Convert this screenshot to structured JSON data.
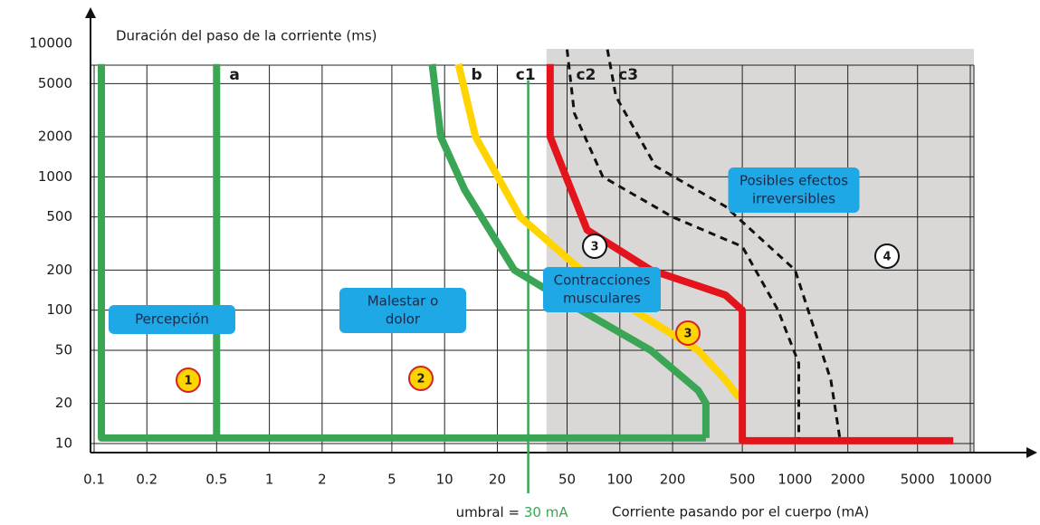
{
  "chart_data": {
    "type": "line",
    "y_label": "Duración del paso de la corriente (ms)",
    "x_label": "Corriente pasando por el cuerpo (mA)",
    "log_x": true,
    "log_y": true,
    "grid": true,
    "xlim": [
      0.1,
      10000
    ],
    "ylim": [
      10,
      10000
    ],
    "xticks": [
      0.1,
      0.2,
      0.5,
      1,
      2,
      5,
      10,
      20,
      50,
      100,
      200,
      500,
      1000,
      2000,
      5000,
      10000
    ],
    "yticks": [
      10,
      20,
      50,
      100,
      200,
      500,
      1000,
      2000,
      5000,
      10000
    ],
    "series": [
      {
        "color": "#3aa655",
        "x": [
          0.11,
          0.11,
          310
        ],
        "values": [
          7000,
          11,
          11
        ]
      },
      {
        "name": "a",
        "color": "#3aa655",
        "x": [
          0.5,
          0.5
        ],
        "values": [
          7000,
          11
        ]
      },
      {
        "color": "#3aa655",
        "x": [
          8.5,
          9.5,
          13,
          25,
          60,
          150,
          280,
          310,
          310
        ],
        "values": [
          7000,
          2000,
          800,
          200,
          100,
          50,
          25,
          20,
          11
        ]
      },
      {
        "name": "b",
        "color": "#ffd400",
        "x": [
          12,
          15,
          27,
          60,
          120,
          280,
          400,
          480
        ],
        "values": [
          7000,
          2000,
          500,
          200,
          100,
          50,
          30,
          22
        ]
      },
      {
        "name": "c1",
        "color": "#e3141c",
        "shade_right": true,
        "x": [
          40,
          40,
          65,
          150,
          400,
          500,
          500,
          8000
        ],
        "values": [
          7000,
          2000,
          400,
          200,
          130,
          100,
          10.5,
          10.5
        ]
      },
      {
        "name": "c2",
        "color": "#111111",
        "dashed": true,
        "x": [
          50,
          55,
          80,
          200,
          500,
          800,
          1050,
          1050
        ],
        "values": [
          9000,
          3000,
          1000,
          500,
          300,
          100,
          40,
          11
        ]
      },
      {
        "name": "c3",
        "color": "#111111",
        "dashed": true,
        "x": [
          85,
          95,
          160,
          400,
          1000,
          1600,
          1800
        ],
        "values": [
          9000,
          4000,
          1200,
          600,
          200,
          30,
          11
        ]
      }
    ],
    "threshold": {
      "text": "umbral =",
      "value": 30,
      "label": "30 mA",
      "color": "#3aa655"
    },
    "regions": [
      {
        "lines": [
          "Percepción"
        ]
      },
      {
        "lines": [
          "Malestar o",
          "dolor"
        ]
      },
      {
        "lines": [
          "Contracciones",
          "musculares"
        ]
      },
      {
        "lines": [
          "Posibles efectos",
          "irreversibles"
        ]
      }
    ],
    "zones": [
      {
        "label": "1",
        "fill": "#ffd400",
        "stroke": "#d4202a"
      },
      {
        "label": "2",
        "fill": "#ffd400",
        "stroke": "#d4202a"
      },
      {
        "label": "3",
        "fill": "#ffffff",
        "stroke": "#111111"
      },
      {
        "label": "3",
        "fill": "#ffd400",
        "stroke": "#d4202a"
      },
      {
        "label": "4",
        "fill": "#ffffff",
        "stroke": "#111111"
      }
    ]
  }
}
